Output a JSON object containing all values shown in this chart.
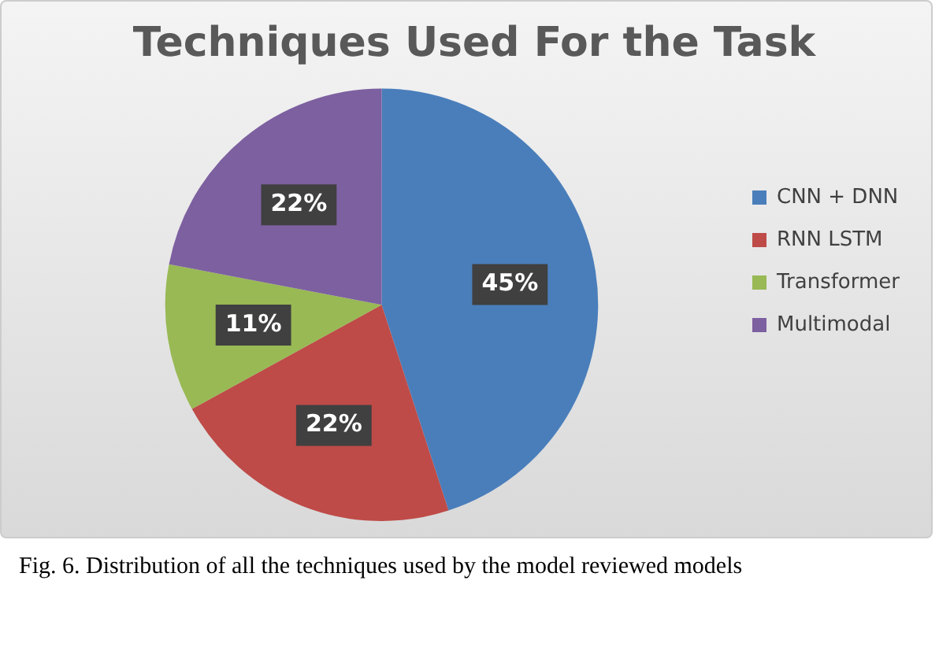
{
  "chart_data": {
    "type": "pie",
    "title": "Techniques Used For the Task",
    "categories": [
      "CNN + DNN",
      "RNN LSTM",
      "Transformer",
      "Multimodal"
    ],
    "values": [
      45,
      22,
      11,
      22
    ],
    "colors": [
      "#4a7ebb",
      "#be4b48",
      "#98b954",
      "#7d60a0"
    ],
    "value_labels": [
      "45%",
      "22%",
      "11%",
      "22%"
    ],
    "legend": "right",
    "annotations": [
      "Fig. 6.  Distribution of all the techniques used by the model reviewed models"
    ]
  }
}
